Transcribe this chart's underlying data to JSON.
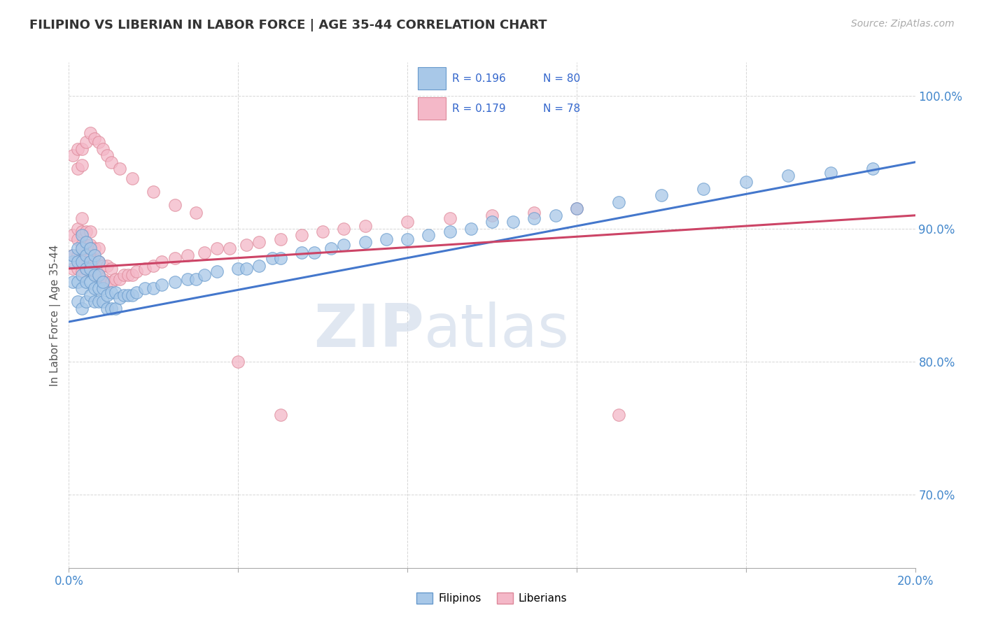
{
  "title": "FILIPINO VS LIBERIAN IN LABOR FORCE | AGE 35-44 CORRELATION CHART",
  "source_text": "Source: ZipAtlas.com",
  "ylabel": "In Labor Force | Age 35-44",
  "xlim": [
    0.0,
    0.2
  ],
  "ylim": [
    0.645,
    1.025
  ],
  "yticks": [
    0.7,
    0.8,
    0.9,
    1.0
  ],
  "yticklabels": [
    "70.0%",
    "80.0%",
    "90.0%",
    "100.0%"
  ],
  "filipino_color": "#a8c8e8",
  "liberian_color": "#f4b8c8",
  "filipino_edge_color": "#6699cc",
  "liberian_edge_color": "#dd8899",
  "trend_filipino_color": "#4477cc",
  "trend_liberian_color": "#cc4466",
  "R_filipino": 0.196,
  "N_filipino": 80,
  "R_liberian": 0.179,
  "N_liberian": 78,
  "legend_label_filipino": "Filipinos",
  "legend_label_liberian": "Liberians",
  "watermark_zip": "ZIP",
  "watermark_atlas": "atlas",
  "fil_trend_x0": 0.0,
  "fil_trend_y0": 0.83,
  "fil_trend_x1": 0.2,
  "fil_trend_y1": 0.95,
  "lib_trend_x0": 0.0,
  "lib_trend_y0": 0.87,
  "lib_trend_x1": 0.2,
  "lib_trend_y1": 0.91,
  "filipino_x": [
    0.001,
    0.001,
    0.001,
    0.002,
    0.002,
    0.002,
    0.002,
    0.003,
    0.003,
    0.003,
    0.003,
    0.003,
    0.003,
    0.004,
    0.004,
    0.004,
    0.004,
    0.004,
    0.005,
    0.005,
    0.005,
    0.005,
    0.005,
    0.006,
    0.006,
    0.006,
    0.006,
    0.007,
    0.007,
    0.007,
    0.007,
    0.008,
    0.008,
    0.008,
    0.009,
    0.009,
    0.01,
    0.01,
    0.011,
    0.011,
    0.012,
    0.013,
    0.014,
    0.015,
    0.016,
    0.018,
    0.02,
    0.022,
    0.025,
    0.028,
    0.03,
    0.032,
    0.035,
    0.04,
    0.042,
    0.045,
    0.048,
    0.05,
    0.055,
    0.058,
    0.062,
    0.065,
    0.07,
    0.075,
    0.08,
    0.085,
    0.09,
    0.095,
    0.1,
    0.105,
    0.11,
    0.115,
    0.12,
    0.13,
    0.14,
    0.15,
    0.16,
    0.17,
    0.18,
    0.19
  ],
  "filipino_y": [
    0.86,
    0.875,
    0.88,
    0.845,
    0.86,
    0.875,
    0.885,
    0.84,
    0.855,
    0.865,
    0.875,
    0.885,
    0.895,
    0.845,
    0.86,
    0.87,
    0.88,
    0.89,
    0.85,
    0.86,
    0.87,
    0.875,
    0.885,
    0.845,
    0.855,
    0.865,
    0.88,
    0.845,
    0.855,
    0.865,
    0.875,
    0.845,
    0.855,
    0.86,
    0.84,
    0.85,
    0.84,
    0.852,
    0.84,
    0.852,
    0.848,
    0.85,
    0.85,
    0.85,
    0.852,
    0.855,
    0.855,
    0.858,
    0.86,
    0.862,
    0.862,
    0.865,
    0.868,
    0.87,
    0.87,
    0.872,
    0.878,
    0.878,
    0.882,
    0.882,
    0.885,
    0.888,
    0.89,
    0.892,
    0.892,
    0.895,
    0.898,
    0.9,
    0.905,
    0.905,
    0.908,
    0.91,
    0.915,
    0.92,
    0.925,
    0.93,
    0.935,
    0.94,
    0.942,
    0.945
  ],
  "liberian_x": [
    0.001,
    0.001,
    0.001,
    0.002,
    0.002,
    0.002,
    0.002,
    0.003,
    0.003,
    0.003,
    0.003,
    0.003,
    0.004,
    0.004,
    0.004,
    0.004,
    0.005,
    0.005,
    0.005,
    0.005,
    0.006,
    0.006,
    0.006,
    0.007,
    0.007,
    0.007,
    0.008,
    0.008,
    0.009,
    0.009,
    0.01,
    0.01,
    0.011,
    0.012,
    0.013,
    0.014,
    0.015,
    0.016,
    0.018,
    0.02,
    0.022,
    0.025,
    0.028,
    0.032,
    0.035,
    0.038,
    0.042,
    0.045,
    0.05,
    0.055,
    0.06,
    0.065,
    0.07,
    0.08,
    0.09,
    0.1,
    0.11,
    0.12,
    0.001,
    0.002,
    0.002,
    0.003,
    0.003,
    0.004,
    0.005,
    0.006,
    0.007,
    0.008,
    0.009,
    0.01,
    0.012,
    0.015,
    0.02,
    0.025,
    0.03,
    0.04,
    0.05,
    0.13
  ],
  "liberian_y": [
    0.87,
    0.88,
    0.895,
    0.87,
    0.88,
    0.892,
    0.9,
    0.868,
    0.878,
    0.888,
    0.898,
    0.908,
    0.87,
    0.878,
    0.888,
    0.898,
    0.868,
    0.878,
    0.888,
    0.898,
    0.865,
    0.875,
    0.885,
    0.865,
    0.875,
    0.885,
    0.862,
    0.872,
    0.86,
    0.872,
    0.86,
    0.87,
    0.862,
    0.862,
    0.865,
    0.865,
    0.865,
    0.868,
    0.87,
    0.872,
    0.875,
    0.878,
    0.88,
    0.882,
    0.885,
    0.885,
    0.888,
    0.89,
    0.892,
    0.895,
    0.898,
    0.9,
    0.902,
    0.905,
    0.908,
    0.91,
    0.912,
    0.915,
    0.955,
    0.945,
    0.96,
    0.948,
    0.96,
    0.965,
    0.972,
    0.968,
    0.965,
    0.96,
    0.955,
    0.95,
    0.945,
    0.938,
    0.928,
    0.918,
    0.912,
    0.8,
    0.76,
    0.76
  ]
}
